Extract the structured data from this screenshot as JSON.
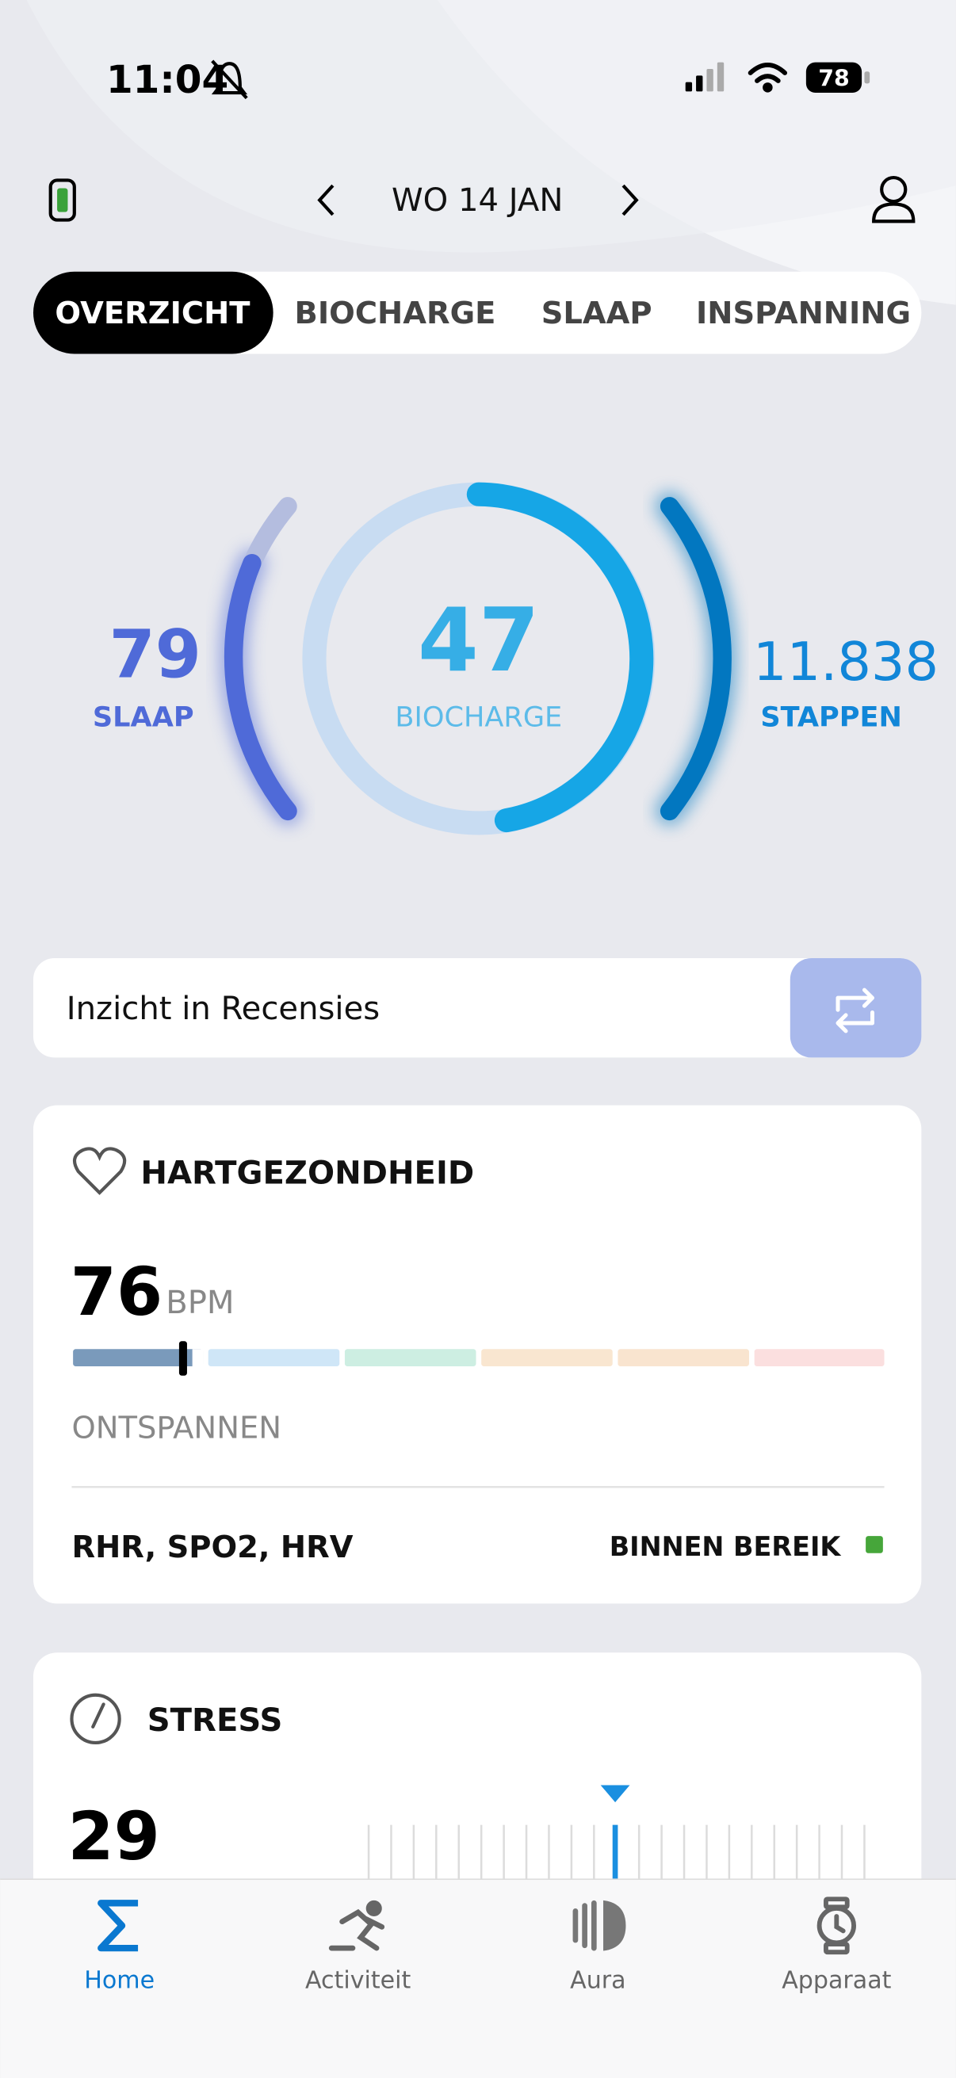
{
  "status": {
    "time": "11:04",
    "battery": "78"
  },
  "header": {
    "date": "WO 14 JAN"
  },
  "tabs": [
    "OVERZICHT",
    "BIOCHARGE",
    "SLAAP",
    "INSPANNING"
  ],
  "rings": {
    "sleep": {
      "value": "79",
      "label": "SLAAP"
    },
    "biocharge": {
      "value": "47",
      "label": "BIOCHARGE"
    },
    "steps": {
      "value": "11.838",
      "label": "STAPPEN"
    }
  },
  "insight": {
    "label": "Inzicht in Recensies"
  },
  "heart": {
    "title": "HARTGEZONDHEID",
    "value": "76",
    "unit": "BPM",
    "zone": "ONTSPANNEN",
    "metrics": "RHR, SPO2, HRV",
    "status": "BINNEN BEREIK"
  },
  "stress": {
    "title": "STRESS",
    "value": "29"
  },
  "nav": [
    "Home",
    "Activiteit",
    "Aura",
    "Apparaat"
  ]
}
